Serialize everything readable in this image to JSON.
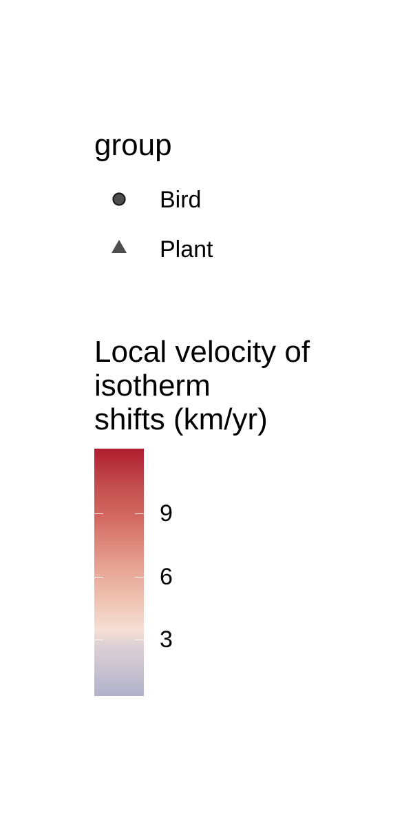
{
  "chart_data": {
    "type": "legend",
    "shape_legend": {
      "title": "group",
      "entries": [
        {
          "label": "Bird",
          "shape": "circle",
          "color": "#4d4d4d"
        },
        {
          "label": "Plant",
          "shape": "triangle",
          "color": "#4d4d4d"
        }
      ]
    },
    "color_legend": {
      "title_lines": [
        "Local velocity of",
        "isotherm",
        "shifts (km/yr)"
      ],
      "range": [
        0.3,
        12.1
      ],
      "ticks": [
        {
          "value": 9,
          "label": "9"
        },
        {
          "value": 6,
          "label": "6"
        },
        {
          "value": 3,
          "label": "3"
        }
      ],
      "colors": {
        "low": "#b2b2ca",
        "mid": "#f5dfd4",
        "high": "#b01e2f"
      }
    }
  }
}
